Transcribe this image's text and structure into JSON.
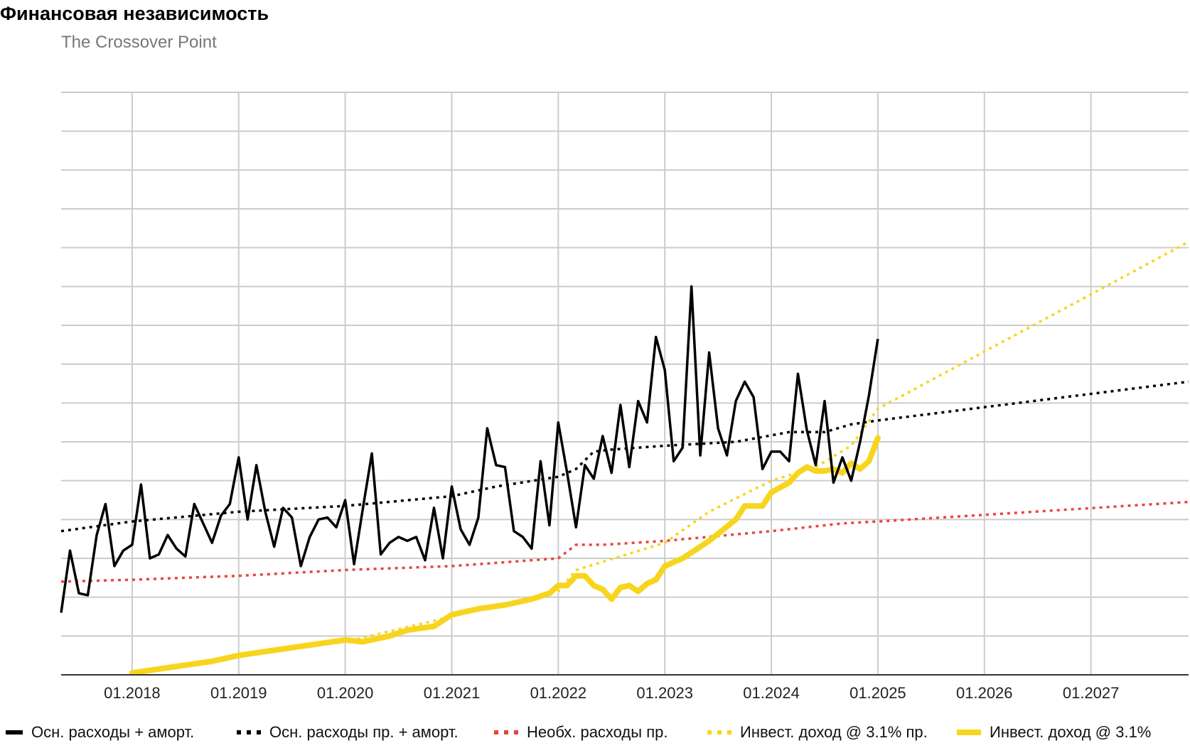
{
  "title": "Финансовая независимость",
  "subtitle": "The Crossover Point",
  "chart_data": {
    "type": "line",
    "title": "Финансовая независимость",
    "subtitle": "The Crossover Point",
    "x_axis": {
      "type": "date",
      "range": [
        "2017-05",
        "2027-12"
      ],
      "tick_labels": [
        "01.2018",
        "01.2019",
        "01.2020",
        "01.2021",
        "01.2022",
        "01.2023",
        "01.2024",
        "01.2025",
        "01.2026",
        "01.2027"
      ],
      "tick_dates": [
        "2018-01",
        "2019-01",
        "2020-01",
        "2021-01",
        "2022-01",
        "2023-01",
        "2024-01",
        "2025-01",
        "2026-01",
        "2027-01"
      ]
    },
    "y_axis": {
      "tick_labels": [],
      "gridlines": 15,
      "range": [
        0,
        15
      ]
    },
    "grid": true,
    "legend_position": "bottom",
    "series": [
      {
        "name": "Осн. расходы + аморт.",
        "style": "solid",
        "color": "#000000",
        "points": [
          [
            "2017-05",
            1.6
          ],
          [
            "2017-06",
            3.2
          ],
          [
            "2017-07",
            2.1
          ],
          [
            "2017-08",
            2.05
          ],
          [
            "2017-09",
            3.6
          ],
          [
            "2017-10",
            4.4
          ],
          [
            "2017-11",
            2.8
          ],
          [
            "2017-12",
            3.2
          ],
          [
            "2018-01",
            3.35
          ],
          [
            "2018-02",
            4.9
          ],
          [
            "2018-03",
            3.0
          ],
          [
            "2018-04",
            3.1
          ],
          [
            "2018-05",
            3.6
          ],
          [
            "2018-06",
            3.25
          ],
          [
            "2018-07",
            3.05
          ],
          [
            "2018-08",
            4.4
          ],
          [
            "2018-09",
            3.9
          ],
          [
            "2018-10",
            3.4
          ],
          [
            "2018-11",
            4.1
          ],
          [
            "2018-12",
            4.4
          ],
          [
            "2019-01",
            5.6
          ],
          [
            "2019-02",
            4.0
          ],
          [
            "2019-03",
            5.4
          ],
          [
            "2019-04",
            4.2
          ],
          [
            "2019-05",
            3.3
          ],
          [
            "2019-06",
            4.3
          ],
          [
            "2019-07",
            4.05
          ],
          [
            "2019-08",
            2.8
          ],
          [
            "2019-09",
            3.55
          ],
          [
            "2019-10",
            4.0
          ],
          [
            "2019-11",
            4.05
          ],
          [
            "2019-12",
            3.8
          ],
          [
            "2020-01",
            4.5
          ],
          [
            "2020-02",
            2.85
          ],
          [
            "2020-03",
            4.3
          ],
          [
            "2020-04",
            5.7
          ],
          [
            "2020-05",
            3.1
          ],
          [
            "2020-06",
            3.4
          ],
          [
            "2020-07",
            3.55
          ],
          [
            "2020-08",
            3.45
          ],
          [
            "2020-09",
            3.55
          ],
          [
            "2020-10",
            2.95
          ],
          [
            "2020-11",
            4.3
          ],
          [
            "2020-12",
            3.0
          ],
          [
            "2021-01",
            4.85
          ],
          [
            "2021-02",
            3.75
          ],
          [
            "2021-03",
            3.35
          ],
          [
            "2021-04",
            4.05
          ],
          [
            "2021-05",
            6.35
          ],
          [
            "2021-06",
            5.4
          ],
          [
            "2021-07",
            5.35
          ],
          [
            "2021-08",
            3.7
          ],
          [
            "2021-09",
            3.55
          ],
          [
            "2021-10",
            3.25
          ],
          [
            "2021-11",
            5.5
          ],
          [
            "2021-12",
            3.85
          ],
          [
            "2022-01",
            6.5
          ],
          [
            "2022-02",
            5.2
          ],
          [
            "2022-03",
            3.8
          ],
          [
            "2022-04",
            5.4
          ],
          [
            "2022-05",
            5.05
          ],
          [
            "2022-06",
            6.15
          ],
          [
            "2022-07",
            5.2
          ],
          [
            "2022-08",
            6.95
          ],
          [
            "2022-09",
            5.35
          ],
          [
            "2022-10",
            7.05
          ],
          [
            "2022-11",
            6.5
          ],
          [
            "2022-12",
            8.7
          ],
          [
            "2023-01",
            7.85
          ],
          [
            "2023-02",
            5.5
          ],
          [
            "2023-03",
            5.85
          ],
          [
            "2023-04",
            10.0
          ],
          [
            "2023-05",
            5.65
          ],
          [
            "2023-06",
            8.3
          ],
          [
            "2023-07",
            6.35
          ],
          [
            "2023-08",
            5.65
          ],
          [
            "2023-09",
            7.05
          ],
          [
            "2023-10",
            7.55
          ],
          [
            "2023-11",
            7.15
          ],
          [
            "2023-12",
            5.3
          ],
          [
            "2024-01",
            5.75
          ],
          [
            "2024-02",
            5.75
          ],
          [
            "2024-03",
            5.5
          ],
          [
            "2024-04",
            7.75
          ],
          [
            "2024-05",
            6.3
          ],
          [
            "2024-06",
            5.4
          ],
          [
            "2024-07",
            7.05
          ],
          [
            "2024-08",
            4.95
          ],
          [
            "2024-09",
            5.6
          ],
          [
            "2024-10",
            5.0
          ],
          [
            "2024-11",
            6.0
          ],
          [
            "2024-12",
            7.2
          ],
          [
            "2025-01",
            8.65
          ]
        ]
      },
      {
        "name": "Осн. расходы пр. + аморт.",
        "style": "dotted",
        "color": "#000000",
        "points": [
          [
            "2017-05",
            3.7
          ],
          [
            "2018-01",
            3.95
          ],
          [
            "2019-01",
            4.2
          ],
          [
            "2020-01",
            4.35
          ],
          [
            "2021-01",
            4.6
          ],
          [
            "2021-06",
            4.85
          ],
          [
            "2022-01",
            5.1
          ],
          [
            "2022-03",
            5.3
          ],
          [
            "2022-05",
            5.75
          ],
          [
            "2022-07",
            5.8
          ],
          [
            "2023-01",
            5.9
          ],
          [
            "2023-09",
            6.0
          ],
          [
            "2024-03",
            6.25
          ],
          [
            "2024-07",
            6.25
          ],
          [
            "2024-10",
            6.45
          ],
          [
            "2025-01",
            6.55
          ],
          [
            "2027-12",
            7.55
          ]
        ]
      },
      {
        "name": "Необх. расходы пр.",
        "style": "dotted",
        "color": "#e8453c",
        "points": [
          [
            "2017-05",
            2.4
          ],
          [
            "2018-01",
            2.45
          ],
          [
            "2019-01",
            2.55
          ],
          [
            "2020-01",
            2.7
          ],
          [
            "2021-01",
            2.8
          ],
          [
            "2022-01",
            3.0
          ],
          [
            "2022-03",
            3.35
          ],
          [
            "2022-06",
            3.35
          ],
          [
            "2023-01",
            3.45
          ],
          [
            "2024-01",
            3.7
          ],
          [
            "2024-09",
            3.9
          ],
          [
            "2025-01",
            3.95
          ],
          [
            "2027-12",
            4.45
          ]
        ]
      },
      {
        "name": "Инвест. доход @ 3.1% пр.",
        "style": "dotted",
        "color": "#f7d51f",
        "points": [
          [
            "2018-01",
            0.05
          ],
          [
            "2019-01",
            0.5
          ],
          [
            "2020-01",
            0.85
          ],
          [
            "2021-01",
            1.5
          ],
          [
            "2022-01",
            2.15
          ],
          [
            "2022-03",
            2.7
          ],
          [
            "2023-01",
            3.4
          ],
          [
            "2023-06",
            4.2
          ],
          [
            "2024-01",
            5.0
          ],
          [
            "2024-06",
            5.35
          ],
          [
            "2024-10",
            5.9
          ],
          [
            "2025-01",
            6.85
          ],
          [
            "2027-12",
            11.15
          ]
        ]
      },
      {
        "name": "Инвест. доход @ 3.1%",
        "style": "thick",
        "color": "#f7d51f",
        "points": [
          [
            "2018-01",
            0.05
          ],
          [
            "2018-04",
            0.15
          ],
          [
            "2018-07",
            0.25
          ],
          [
            "2018-10",
            0.35
          ],
          [
            "2019-01",
            0.5
          ],
          [
            "2019-04",
            0.6
          ],
          [
            "2019-07",
            0.7
          ],
          [
            "2019-10",
            0.8
          ],
          [
            "2020-01",
            0.9
          ],
          [
            "2020-03",
            0.85
          ],
          [
            "2020-06",
            1.0
          ],
          [
            "2020-08",
            1.15
          ],
          [
            "2020-11",
            1.25
          ],
          [
            "2021-01",
            1.55
          ],
          [
            "2021-04",
            1.7
          ],
          [
            "2021-07",
            1.8
          ],
          [
            "2021-10",
            1.95
          ],
          [
            "2021-12",
            2.1
          ],
          [
            "2022-01",
            2.3
          ],
          [
            "2022-02",
            2.3
          ],
          [
            "2022-03",
            2.55
          ],
          [
            "2022-04",
            2.55
          ],
          [
            "2022-05",
            2.3
          ],
          [
            "2022-06",
            2.2
          ],
          [
            "2022-07",
            1.95
          ],
          [
            "2022-08",
            2.25
          ],
          [
            "2022-09",
            2.3
          ],
          [
            "2022-10",
            2.15
          ],
          [
            "2022-11",
            2.35
          ],
          [
            "2022-12",
            2.45
          ],
          [
            "2023-01",
            2.8
          ],
          [
            "2023-03",
            3.0
          ],
          [
            "2023-06",
            3.45
          ],
          [
            "2023-09",
            4.0
          ],
          [
            "2023-10",
            4.35
          ],
          [
            "2023-12",
            4.35
          ],
          [
            "2024-01",
            4.7
          ],
          [
            "2024-03",
            4.95
          ],
          [
            "2024-04",
            5.2
          ],
          [
            "2024-05",
            5.35
          ],
          [
            "2024-06",
            5.25
          ],
          [
            "2024-07",
            5.25
          ],
          [
            "2024-08",
            5.3
          ],
          [
            "2024-09",
            5.2
          ],
          [
            "2024-10",
            5.45
          ],
          [
            "2024-11",
            5.3
          ],
          [
            "2024-12",
            5.5
          ],
          [
            "2025-01",
            6.1
          ]
        ]
      }
    ]
  },
  "legend": {
    "items": [
      {
        "label": "Осн. расходы + аморт."
      },
      {
        "label": "Осн. расходы пр. + аморт."
      },
      {
        "label": "Необх. расходы пр."
      },
      {
        "label": "Инвест. доход @ 3.1% пр."
      },
      {
        "label": "Инвест. доход @ 3.1%"
      }
    ]
  },
  "colors": {
    "black": "#000000",
    "red": "#e8453c",
    "yellow": "#f7d51f",
    "grid": "#cccccc"
  }
}
